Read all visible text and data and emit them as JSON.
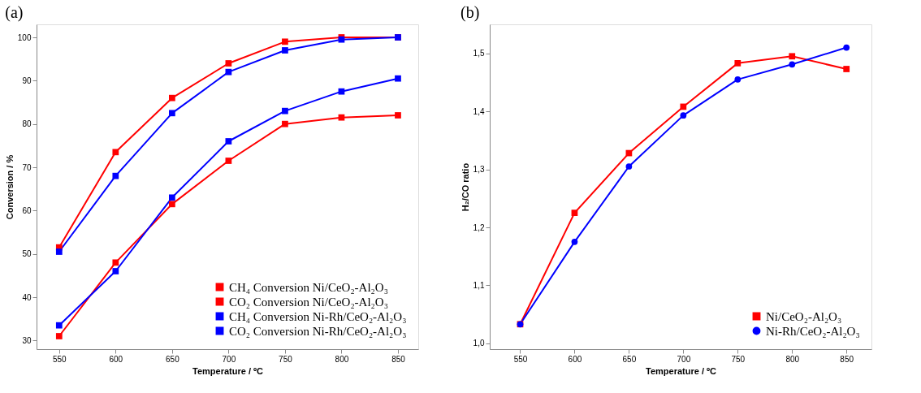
{
  "chart_data": [
    {
      "type": "line",
      "title": "(a)",
      "xlabel": "Temperature / ºC",
      "ylabel": "Conversion / %",
      "x": [
        550,
        600,
        650,
        700,
        750,
        800,
        850
      ],
      "xlim": [
        530,
        868
      ],
      "xticks": [
        550,
        600,
        650,
        700,
        750,
        800,
        850
      ],
      "ylim": [
        28,
        103
      ],
      "yticks": [
        30,
        40,
        50,
        60,
        70,
        80,
        90,
        100
      ],
      "marker": "square",
      "legend": "bottom right",
      "grid": false,
      "series": [
        {
          "name": "CH₄ Conversion Ni/CeO₂-Al₂O₃",
          "color": "#ff0000",
          "values": [
            31,
            48,
            61.5,
            71.5,
            80,
            81.5,
            82
          ]
        },
        {
          "name": "CO₂ Conversion Ni/CeO₂-Al₂O₃",
          "color": "#ff0000",
          "values": [
            51.5,
            73.5,
            86,
            94,
            99,
            100,
            100
          ]
        },
        {
          "name": "CH₄ Conversion Ni-Rh/CeO₂-Al₂O₃",
          "color": "#0000ff",
          "values": [
            33.5,
            46,
            63,
            76,
            83,
            87.5,
            90.5
          ]
        },
        {
          "name": "CO₂ Conversion Ni-Rh/CeO₂-Al₂O₃",
          "color": "#0000ff",
          "values": [
            50.5,
            68,
            82.5,
            92,
            97,
            99.5,
            100
          ]
        }
      ]
    },
    {
      "type": "line",
      "title": "(b)",
      "xlabel": "Temperature / ºC",
      "ylabel": "H₂/CO ratio",
      "x": [
        550,
        600,
        650,
        700,
        750,
        800,
        850
      ],
      "xlim": [
        522,
        873
      ],
      "xticks": [
        550,
        600,
        650,
        700,
        750,
        800,
        850
      ],
      "ylim": [
        0.99,
        1.55
      ],
      "yticks": [
        {
          "value": 1.0,
          "label": "1,0"
        },
        {
          "value": 1.1,
          "label": "1,1"
        },
        {
          "value": 1.2,
          "label": "1,2"
        },
        {
          "value": 1.3,
          "label": "1,3"
        },
        {
          "value": 1.4,
          "label": "1,4"
        },
        {
          "value": 1.5,
          "label": "1,5"
        }
      ],
      "legend": "bottom right",
      "grid": false,
      "series": [
        {
          "name": "Ni/CeO₂-Al₂O₃",
          "color": "#ff0000",
          "marker": "square",
          "values": [
            1.033,
            1.225,
            1.328,
            1.408,
            1.483,
            1.495,
            1.473
          ]
        },
        {
          "name": "Ni-Rh/CeO₂-Al₂O₃",
          "color": "#0000ff",
          "marker": "circle",
          "values": [
            1.033,
            1.175,
            1.305,
            1.393,
            1.455,
            1.481,
            1.51
          ]
        }
      ]
    }
  ]
}
